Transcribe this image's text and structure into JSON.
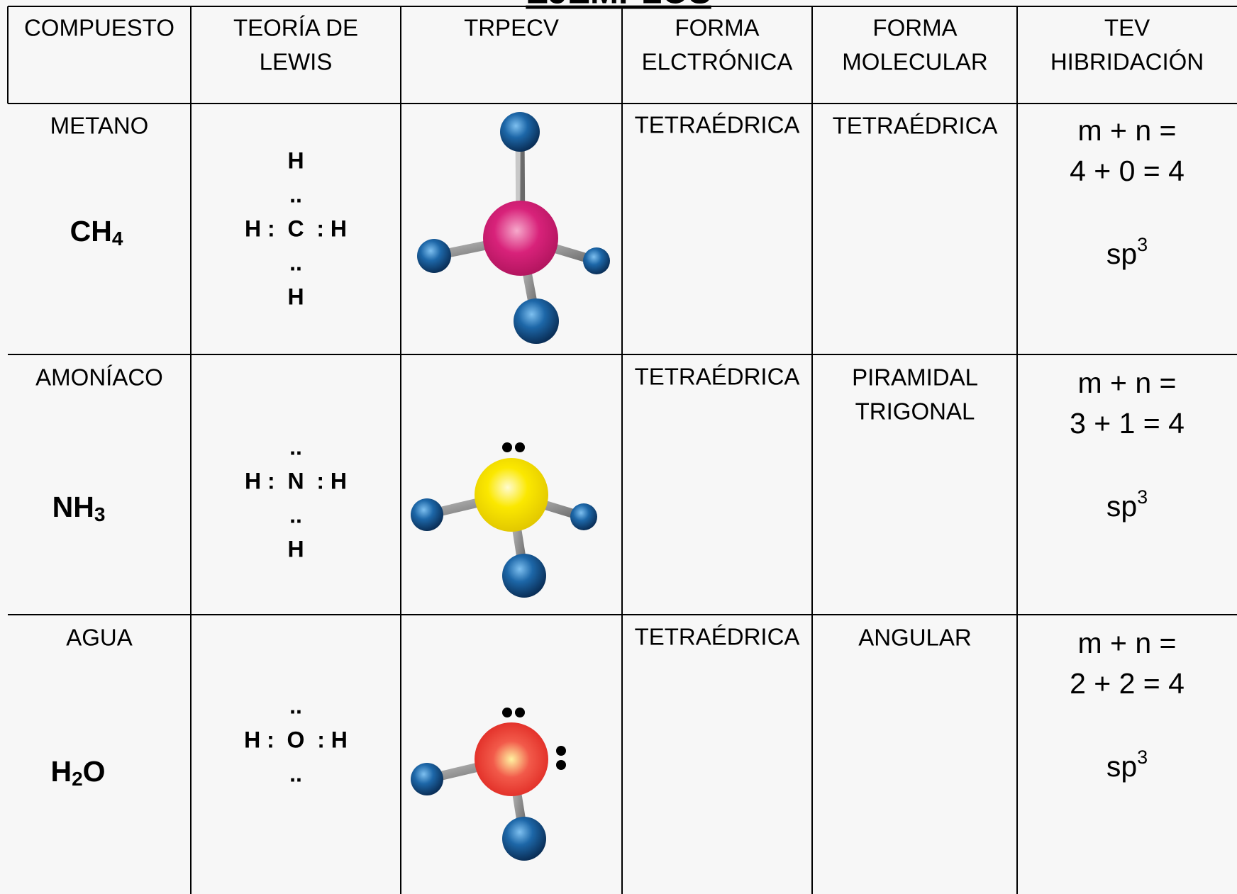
{
  "header": {
    "title": "EJEMPLOS"
  },
  "table": {
    "columns": [
      [
        "COMPUESTO"
      ],
      [
        "TEORÍA DE",
        "LEWIS"
      ],
      [
        "TRPECV"
      ],
      [
        "FORMA",
        "ELCTRÓNICA"
      ],
      [
        "FORMA",
        "MOLECULAR"
      ],
      [
        "TEV",
        "HIBRIDACIÓN"
      ]
    ],
    "rows": [
      {
        "name": "METANO",
        "formula": [
          {
            "text": "CH"
          },
          {
            "sub": "4"
          }
        ],
        "lewis": [
          "H",
          "..",
          "H :  C  : H",
          "..",
          "H"
        ],
        "electronic": "TETRAÉDRICA",
        "molecular": [
          "TETRAÉDRICA"
        ],
        "tev": [
          "m + n =",
          "4 + 0 = 4"
        ],
        "hybrid": {
          "text": "sp",
          "sup": "3"
        }
      },
      {
        "name": "AMONÍACO",
        "formula": [
          {
            "text": "NH"
          },
          {
            "sub": "3"
          }
        ],
        "lewis": [
          "..",
          "H :  N  : H",
          "..",
          "H"
        ],
        "electronic": "TETRAÉDRICA",
        "molecular": [
          "PIRAMIDAL",
          "TRIGONAL"
        ],
        "tev": [
          "m + n =",
          "3 + 1 = 4"
        ],
        "hybrid": {
          "text": "sp",
          "sup": "3"
        }
      },
      {
        "name": "AGUA",
        "formula": [
          {
            "text": "H"
          },
          {
            "sub": "2"
          },
          {
            "text": "O"
          }
        ],
        "lewis": [
          "..",
          "H :  O  : H",
          ".."
        ],
        "electronic": "TETRAÉDRICA",
        "molecular": [
          "ANGULAR"
        ],
        "tev": [
          "m + n =",
          "2 + 2 = 4"
        ],
        "hybrid": {
          "text": "sp",
          "sup": "3"
        }
      }
    ]
  }
}
